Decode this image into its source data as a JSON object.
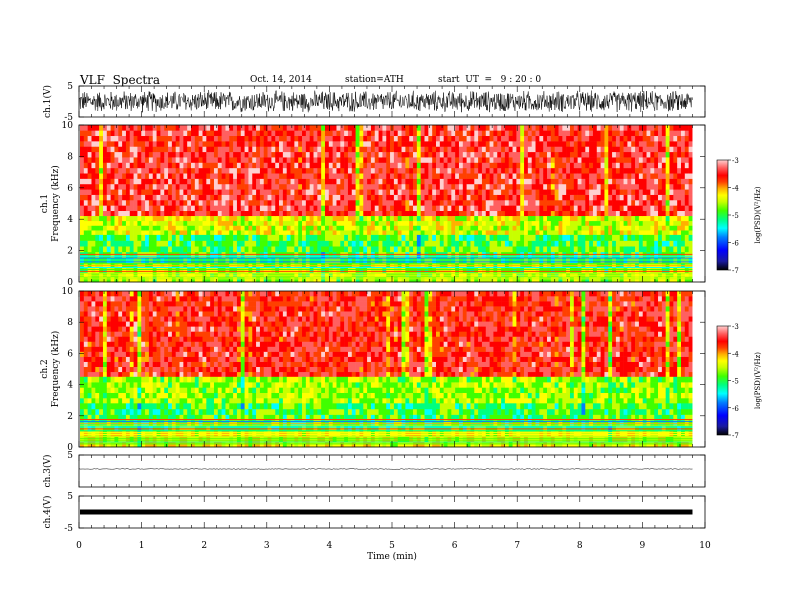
{
  "header": {
    "title": "VLF  Spectra",
    "date": "Oct. 14, 2014",
    "station": "station=ATH",
    "start": "start  UT  =   9 : 20 : 0"
  },
  "colors": {
    "background": "#ffffff",
    "axis": "#000000",
    "colormap": [
      "#000000",
      "#1a1aa0",
      "#0000ff",
      "#0080ff",
      "#00ffff",
      "#00ff80",
      "#40ff00",
      "#c8ff00",
      "#ffff00",
      "#ffb000",
      "#ff4000",
      "#ff0000",
      "#ff6060",
      "#ffd0d0"
    ]
  },
  "chart_data": [
    {
      "type": "line",
      "name": "ch1-waveform",
      "ylabel": "ch.1(V)",
      "ylim": [
        -5,
        5
      ],
      "yticks": [
        "5",
        "-5"
      ],
      "description_of_values": "noisy waveform roughly between -2 and 2 V across 0-9.8 min",
      "x_range": [
        0,
        9.8
      ],
      "amplitude": 2.0
    },
    {
      "type": "heatmap",
      "name": "ch1-spectrogram",
      "ylabel": "ch.1\nFrequency (kHz)",
      "ylabel_line1": "ch.1",
      "ylabel_line2": "Frequency  (kHz)",
      "ylim": [
        0,
        10
      ],
      "yticks": [
        "10",
        "8",
        "6",
        "4",
        "2",
        "0"
      ],
      "x_range": [
        0,
        9.8
      ],
      "colorbar": {
        "label": "log(PSD)(V²/Hz)",
        "ticks": [
          "-3",
          "-4",
          "-5",
          "-6",
          "-7"
        ],
        "range": [
          -7,
          -3
        ]
      },
      "bands": [
        {
          "from": 4.2,
          "to": 10,
          "level": -3.6
        },
        {
          "from": 3.0,
          "to": 4.2,
          "level": -4.7
        },
        {
          "from": 1.2,
          "to": 3.0,
          "level": -5.2
        },
        {
          "from": 0,
          "to": 1.2,
          "level": -4.9
        }
      ]
    },
    {
      "type": "heatmap",
      "name": "ch2-spectrogram",
      "ylabel_line1": "ch.2",
      "ylabel_line2": "Frequency  (kHz)",
      "ylim": [
        0,
        10
      ],
      "yticks": [
        "10",
        "8",
        "6",
        "4",
        "2",
        "0"
      ],
      "x_range": [
        0,
        9.8
      ],
      "colorbar": {
        "label": "log(PSD)(V²/Hz)",
        "ticks": [
          "-3",
          "-4",
          "-5",
          "-6",
          "-7"
        ],
        "range": [
          -7,
          -3
        ]
      },
      "bands": [
        {
          "from": 4.5,
          "to": 10,
          "level": -3.7
        },
        {
          "from": 2.8,
          "to": 4.5,
          "level": -4.9
        },
        {
          "from": 1.0,
          "to": 2.8,
          "level": -5.2
        },
        {
          "from": 0,
          "to": 1.0,
          "level": -4.6
        }
      ]
    },
    {
      "type": "line",
      "name": "ch3-waveform",
      "ylabel": "ch.3(V)",
      "ylim": [
        -5,
        5
      ],
      "yticks": [
        "5"
      ],
      "x_range": [
        0,
        9.8
      ],
      "level": 0,
      "amplitude": 0.15
    },
    {
      "type": "line",
      "name": "ch4-waveform",
      "ylabel": "ch.4(V)",
      "ylim": [
        -5,
        5
      ],
      "yticks": [
        "5",
        "-5"
      ],
      "x_range": [
        0,
        9.8
      ],
      "level": 0,
      "amplitude": 0.35,
      "xlabel": "Time  (min)",
      "xticks": [
        "0",
        "1",
        "2",
        "3",
        "4",
        "5",
        "6",
        "7",
        "8",
        "9",
        "10"
      ],
      "xlim": [
        0,
        10
      ]
    }
  ]
}
